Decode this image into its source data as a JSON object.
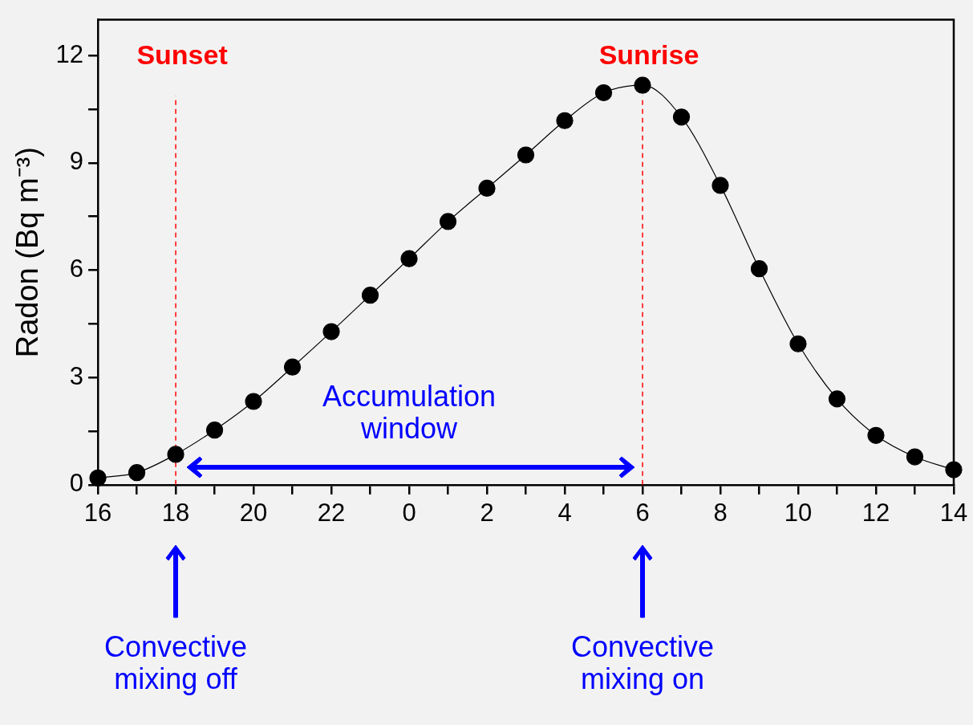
{
  "chart_data": {
    "type": "line",
    "ylabel": "Radon (Bq m⁻³)",
    "categories": [
      "16",
      null,
      "18",
      null,
      "20",
      null,
      "22",
      null,
      "0",
      null,
      "2",
      null,
      "4",
      null,
      "6",
      null,
      "8",
      null,
      "10",
      null,
      "12",
      null,
      "14"
    ],
    "series": [
      {
        "color": "#000000",
        "values": [
          0.19,
          0.34,
          0.85,
          1.53,
          2.33,
          3.29,
          4.28,
          5.3,
          6.32,
          7.36,
          8.29,
          9.22,
          10.18,
          10.96,
          11.17,
          10.28,
          8.37,
          6.04,
          3.94,
          2.4,
          1.38,
          0.78,
          0.42
        ]
      }
    ],
    "marker": "circle",
    "line_style": "solid",
    "ylim": [
      0,
      13
    ],
    "yticks": [
      0,
      {
        "value": 1.5,
        "label": null
      },
      3,
      {
        "value": 4.5,
        "label": null
      },
      6,
      {
        "value": 7.5,
        "label": null
      },
      9,
      {
        "value": 10.5,
        "label": null
      },
      12
    ],
    "grid": false,
    "legend": false,
    "ref_lines": [
      {
        "axis": "x",
        "value": "18",
        "label": "Sunset",
        "color": "#ff0000",
        "line_style": "dashed"
      },
      {
        "axis": "x",
        "value": "6",
        "label": "Sunrise",
        "color": "#ff0000",
        "line_style": "dashed"
      }
    ],
    "annotations": [
      "Accumulation window",
      "Convective mixing off",
      "Convective mixing on"
    ]
  }
}
